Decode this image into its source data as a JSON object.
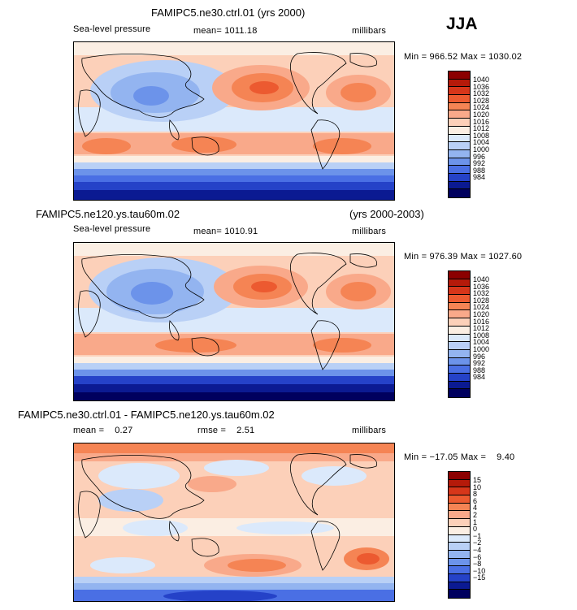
{
  "season": "JJA",
  "panels": [
    {
      "title": "FAMIPC5.ne30.ctrl.01 (yrs 2000)",
      "variable": "Sea-level pressure",
      "mean_label": "mean= 1011.18",
      "units": "millibars",
      "minmax": "Min = 966.52 Max = 1030.02",
      "colorbar_levels": [
        "1040",
        "1036",
        "1032",
        "1028",
        "1024",
        "1020",
        "1016",
        "1012",
        "1008",
        "1004",
        "1000",
        "996",
        "992",
        "988",
        "984"
      ],
      "colorbar_colors": [
        "#8b0000",
        "#b51a0a",
        "#d6361a",
        "#ec5a30",
        "#f58454",
        "#f9a98a",
        "#fcd0b9",
        "#fbeee3",
        "#dbe9fb",
        "#b9d0f6",
        "#93b4f0",
        "#6c93ea",
        "#4a6fe4",
        "#2542c8",
        "#0b1a92",
        "#00005e"
      ]
    },
    {
      "title": "FAMIPC5.ne120.ys.tau60m.02",
      "title_years": "(yrs 2000-2003)",
      "variable": "Sea-level pressure",
      "mean_label": "mean= 1010.91",
      "units": "millibars",
      "minmax": "Min = 976.39 Max = 1027.60",
      "colorbar_levels": [
        "1040",
        "1036",
        "1032",
        "1028",
        "1024",
        "1020",
        "1016",
        "1012",
        "1008",
        "1004",
        "1000",
        "996",
        "992",
        "988",
        "984"
      ],
      "colorbar_colors": [
        "#8b0000",
        "#b51a0a",
        "#d6361a",
        "#ec5a30",
        "#f58454",
        "#f9a98a",
        "#fcd0b9",
        "#fbeee3",
        "#dbe9fb",
        "#b9d0f6",
        "#93b4f0",
        "#6c93ea",
        "#4a6fe4",
        "#2542c8",
        "#0b1a92",
        "#00005e"
      ]
    },
    {
      "title": "FAMIPC5.ne30.ctrl.01 - FAMIPC5.ne120.ys.tau60m.02",
      "mean_label": "mean =    0.27",
      "rmse_label": "rmse =    2.51",
      "units": "millibars",
      "minmax": "Min = −17.05 Max =    9.40",
      "colorbar_levels": [
        "15",
        "10",
        "8",
        "6",
        "4",
        "2",
        "1",
        "0",
        "−1",
        "−2",
        "−4",
        "−6",
        "−8",
        "−10",
        "−15"
      ],
      "colorbar_colors": [
        "#8b0000",
        "#b51a0a",
        "#d6361a",
        "#ec5a30",
        "#f58454",
        "#f9a98a",
        "#fcd0b9",
        "#fbeee3",
        "#dbe9fb",
        "#b9d0f6",
        "#93b4f0",
        "#6c93ea",
        "#4a6fe4",
        "#2542c8",
        "#0b1a92",
        "#00005e"
      ]
    }
  ]
}
